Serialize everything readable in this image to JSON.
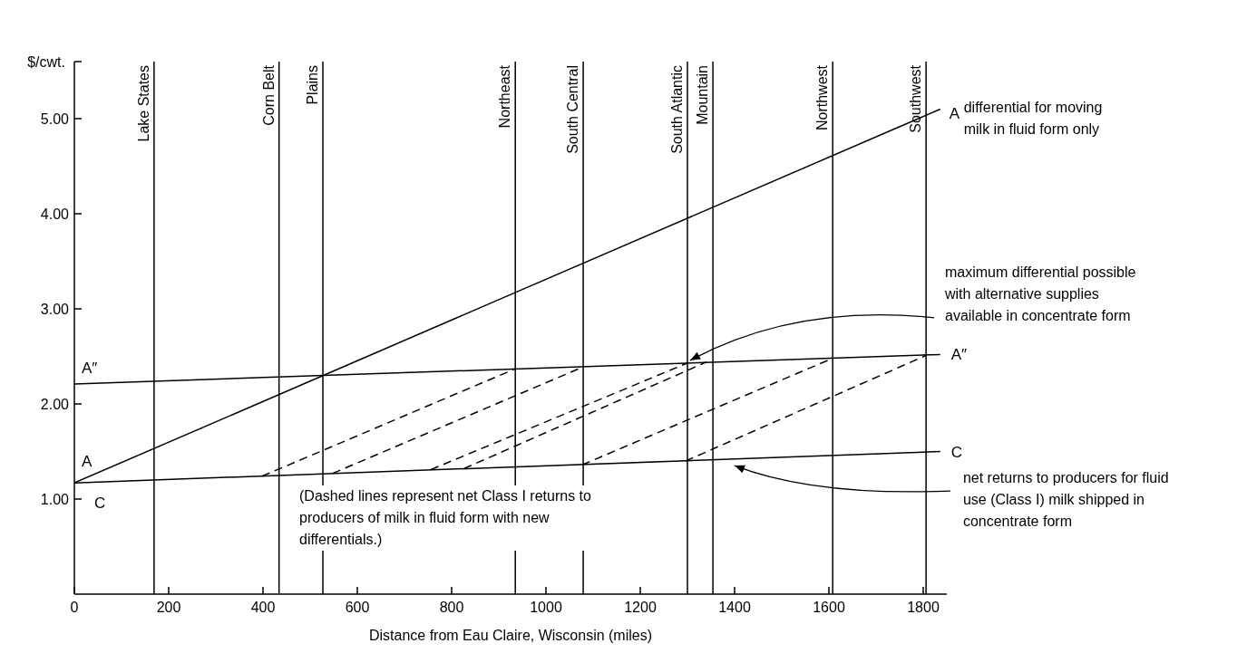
{
  "chart_data": {
    "type": "line",
    "ylabel": "$/cwt.",
    "xlabel": "Distance from Eau Claire, Wisconsin (miles)",
    "xlim": [
      0,
      1850
    ],
    "ylim": [
      0,
      5.6
    ],
    "xticks": [
      0,
      200,
      400,
      600,
      800,
      1000,
      1200,
      1400,
      1600,
      1800
    ],
    "yticks": [
      {
        "value": 1,
        "label": "1.00"
      },
      {
        "value": 2,
        "label": "2.00"
      },
      {
        "value": 3,
        "label": "3.00"
      },
      {
        "value": 4,
        "label": "4.00"
      },
      {
        "value": 5,
        "label": "5.00"
      },
      {
        "value": 5.6,
        "label": null
      }
    ],
    "line_style": "solid",
    "series": [
      {
        "color": "#000000",
        "x": [
          0,
          1836
        ],
        "values": [
          1.17,
          5.1
        ]
      },
      {
        "color": "#000000",
        "x": [
          0,
          1836
        ],
        "values": [
          2.21,
          2.52
        ]
      },
      {
        "color": "#000000",
        "x": [
          0,
          1836
        ],
        "values": [
          1.17,
          1.5
        ]
      },
      {
        "color": "#000000",
        "line_style": "dashed",
        "x": [
          398,
          935
        ],
        "values": [
          1.24,
          2.37
        ]
      },
      {
        "color": "#000000",
        "line_style": "dashed",
        "x": [
          548,
          1079
        ],
        "values": [
          1.27,
          2.39
        ]
      },
      {
        "color": "#000000",
        "line_style": "dashed",
        "x": [
          756,
          1300
        ],
        "values": [
          1.31,
          2.43
        ]
      },
      {
        "color": "#000000",
        "line_style": "dashed",
        "x": [
          826,
          1340
        ],
        "values": [
          1.32,
          2.44
        ]
      },
      {
        "color": "#000000",
        "line_style": "dashed",
        "x": [
          1077,
          1608
        ],
        "values": [
          1.36,
          2.48
        ]
      },
      {
        "color": "#000000",
        "line_style": "dashed",
        "x": [
          1296,
          1806
        ],
        "values": [
          1.4,
          2.51
        ]
      }
    ],
    "ref_lines": [
      {
        "axis": "x",
        "value": 169,
        "label": "Lake States"
      },
      {
        "axis": "x",
        "value": 434,
        "label": "Corn Belt"
      },
      {
        "axis": "x",
        "value": 527,
        "label": "Plains"
      },
      {
        "axis": "x",
        "value": 935,
        "label": "Northeast"
      },
      {
        "axis": "x",
        "value": 1079,
        "label": "South Central"
      },
      {
        "axis": "x",
        "value": 1300,
        "label": "South Atlantic"
      },
      {
        "axis": "x",
        "value": 1354,
        "label": "Mountain"
      },
      {
        "axis": "x",
        "value": 1608,
        "label": "Northwest"
      },
      {
        "axis": "x",
        "value": 1806,
        "label": "Southwest"
      }
    ],
    "annotations": [
      {
        "text": "A",
        "x": 0,
        "y": 1.17
      },
      {
        "text": "C",
        "x": 0,
        "y": 1.17
      },
      {
        "text": "A″",
        "x": 0,
        "y": 2.21
      },
      {
        "text": "A",
        "x": 1836,
        "y": 5.1
      },
      {
        "text": "A″",
        "x": 1836,
        "y": 2.52
      },
      {
        "text": "C",
        "x": 1836,
        "y": 1.5
      },
      {
        "text": "differential for moving milk in fluid form only",
        "x": 1836,
        "y": 5.1
      },
      {
        "text": "maximum differential possible with alternative supplies available in concentrate form",
        "x": 1300,
        "y": 2.43
      },
      {
        "text": "net returns to producers for fluid use (Class I) milk shipped in concentrate form",
        "x": 1396,
        "y": 1.39
      },
      "(Dashed lines represent net Class I returns to producers of milk in fluid form with new differentials.)"
    ]
  }
}
